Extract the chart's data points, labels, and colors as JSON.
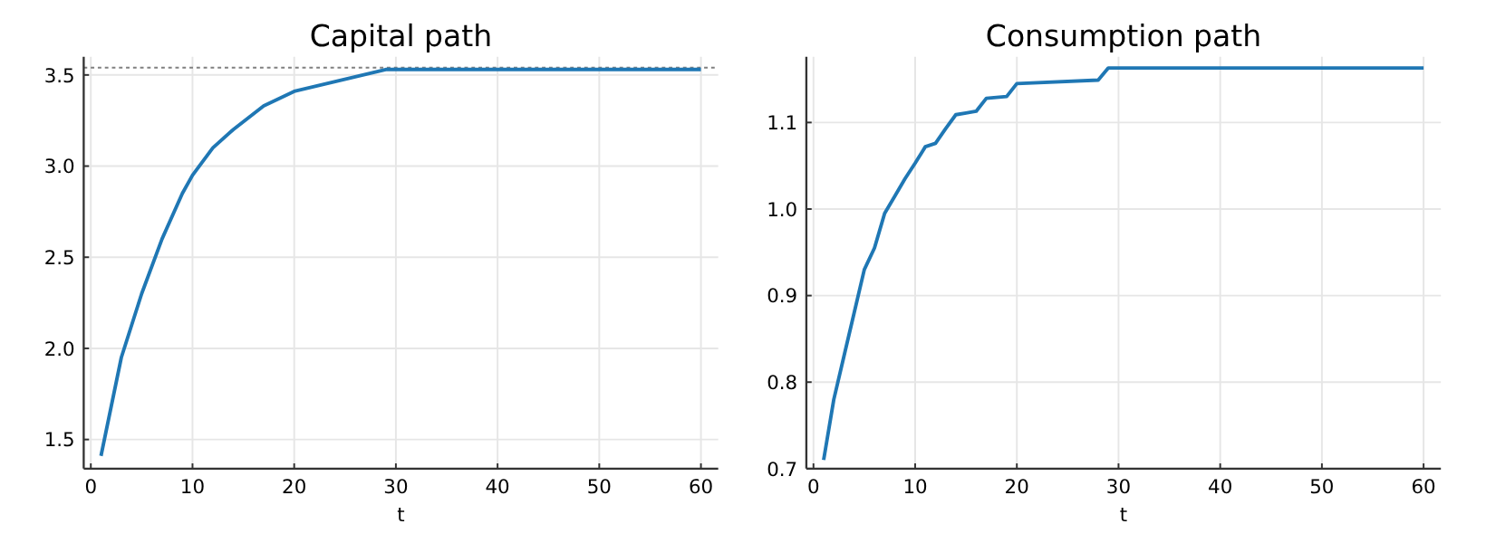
{
  "chart_data": [
    {
      "type": "line",
      "title": "Capital path",
      "xlabel": "t",
      "x": [
        1,
        3,
        5,
        7,
        9,
        10,
        12,
        14,
        17,
        20,
        29,
        60
      ],
      "series": [
        {
          "color": "#1f77b4",
          "values": [
            1.41,
            1.95,
            2.3,
            2.6,
            2.85,
            2.95,
            3.1,
            3.2,
            3.33,
            3.41,
            3.53,
            3.53
          ]
        }
      ],
      "xlim": [
        -0.7,
        61.7
      ],
      "ylim": [
        1.34,
        3.6
      ],
      "xticks": [
        0,
        10,
        20,
        30,
        40,
        50,
        60
      ],
      "yticks": [
        {
          "value": 1.5,
          "label": "1.5"
        },
        {
          "value": 2,
          "label": "2.0"
        },
        {
          "value": 2.5,
          "label": "2.5"
        },
        {
          "value": 3,
          "label": "3.0"
        },
        {
          "value": 3.5,
          "label": "3.5"
        }
      ],
      "grid": true,
      "ref_lines": [
        {
          "axis": "y",
          "value": 3.54,
          "color": "#808080",
          "line_style": "dotted"
        }
      ]
    },
    {
      "type": "line",
      "title": "Consumption path",
      "xlabel": "t",
      "x": [
        1,
        2,
        3,
        4,
        5,
        6,
        7,
        8,
        9,
        10,
        11,
        12,
        13,
        14,
        15,
        16,
        17,
        18,
        19,
        20,
        28,
        29,
        60
      ],
      "series": [
        {
          "color": "#1f77b4",
          "values": [
            0.71,
            0.78,
            0.83,
            0.88,
            0.93,
            0.955,
            0.995,
            1.015,
            1.035,
            1.053,
            1.072,
            1.076,
            1.093,
            1.109,
            1.111,
            1.113,
            1.128,
            1.129,
            1.13,
            1.145,
            1.149,
            1.163,
            1.163
          ]
        }
      ],
      "xlim": [
        -0.7,
        61.7
      ],
      "ylim": [
        0.7,
        1.176
      ],
      "xticks": [
        0,
        10,
        20,
        30,
        40,
        50,
        60
      ],
      "yticks": [
        {
          "value": 0.7,
          "label": "0.7"
        },
        {
          "value": 0.8,
          "label": "0.8"
        },
        {
          "value": 0.9,
          "label": "0.9"
        },
        {
          "value": 1,
          "label": "1.0"
        },
        {
          "value": 1.1,
          "label": "1.1"
        }
      ],
      "grid": true
    }
  ]
}
